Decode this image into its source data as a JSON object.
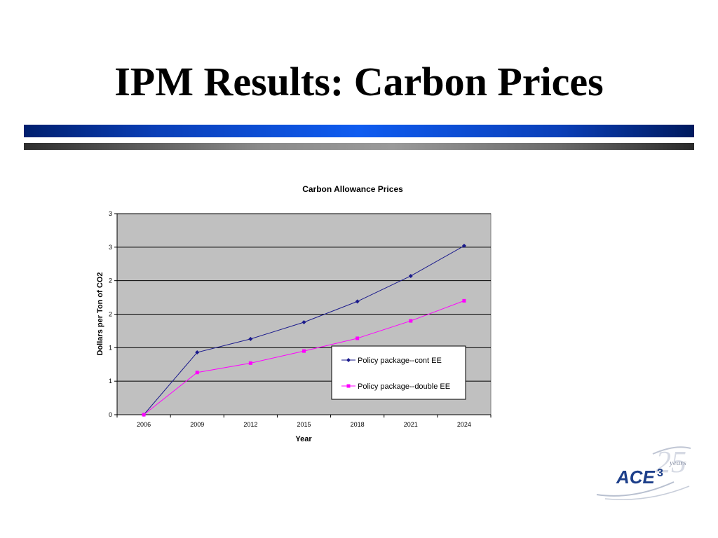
{
  "slide": {
    "title": "IPM Results: Carbon Prices"
  },
  "chart_data": {
    "type": "line",
    "title": "Carbon Allowance Prices",
    "xlabel": "Year",
    "ylabel": "Dollars per Ton of CO2",
    "categories": [
      "2006",
      "2009",
      "2012",
      "2015",
      "2018",
      "2021",
      "2024"
    ],
    "y_tick_labels": [
      "0",
      "1",
      "1",
      "2",
      "2",
      "3",
      "3"
    ],
    "ylim": [
      0,
      3
    ],
    "grid": true,
    "legend_position": "lower-right",
    "series": [
      {
        "name": "Policy package--cont EE",
        "values": [
          0,
          0.93,
          1.13,
          1.38,
          1.69,
          2.07,
          2.52
        ],
        "color": "#1a1a8c",
        "marker": "diamond"
      },
      {
        "name": "Policy package--double EE",
        "values": [
          0,
          0.63,
          0.77,
          0.95,
          1.14,
          1.4,
          1.7
        ],
        "color": "#ff00ff",
        "marker": "square"
      }
    ],
    "plot_background": "#c0c0c0"
  },
  "logo": {
    "text": "ACE",
    "superscript": "3",
    "script_text": "years",
    "numeral": "25"
  }
}
